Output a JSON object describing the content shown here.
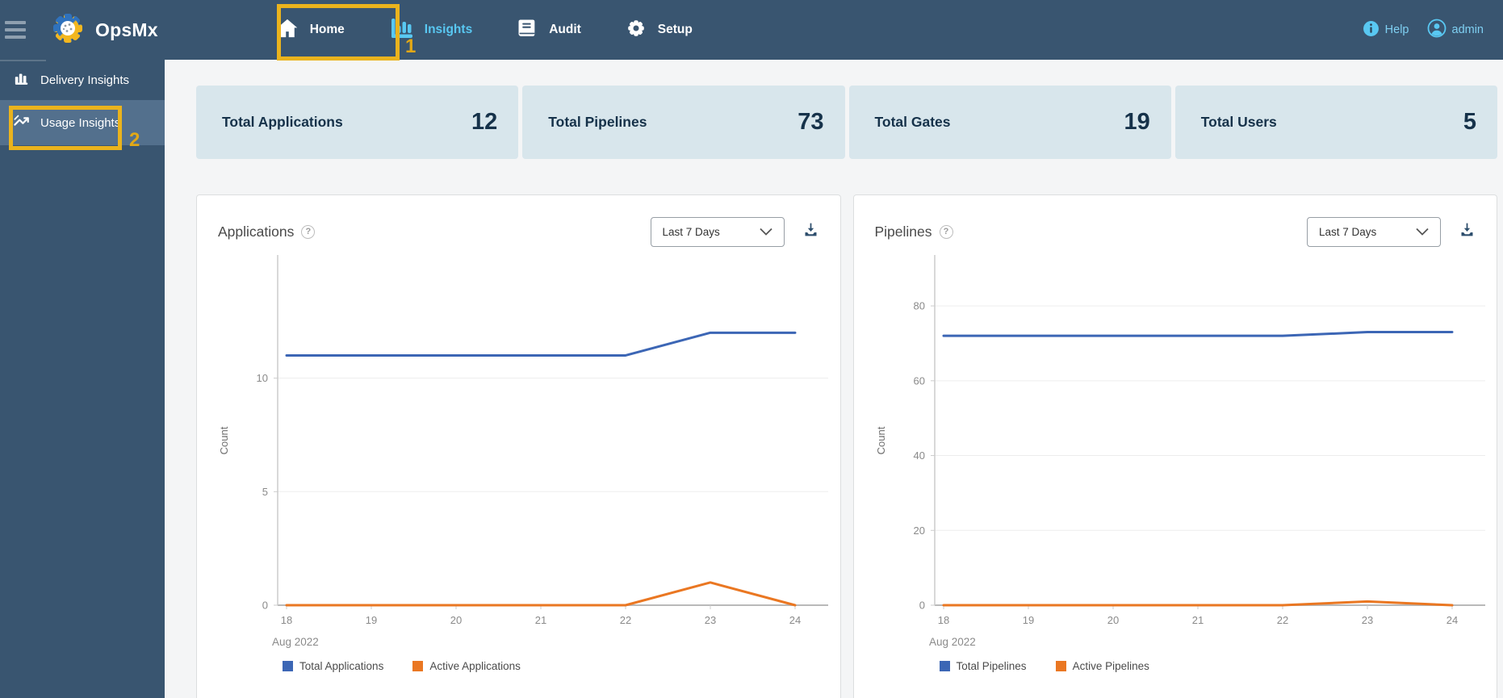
{
  "navbar": {
    "brand": "OpsMx",
    "items": [
      {
        "label": "Home"
      },
      {
        "label": "Insights"
      },
      {
        "label": "Audit"
      },
      {
        "label": "Setup"
      }
    ],
    "help_label": "Help",
    "user_label": "admin"
  },
  "annotations": {
    "step1": "1",
    "step2": "2"
  },
  "sidebar": {
    "items": [
      {
        "label": "Delivery Insights"
      },
      {
        "label": "Usage Insights"
      }
    ]
  },
  "stats": [
    {
      "label": "Total Applications",
      "value": "12"
    },
    {
      "label": "Total Pipelines",
      "value": "73"
    },
    {
      "label": "Total Gates",
      "value": "19"
    },
    {
      "label": "Total Users",
      "value": "5"
    }
  ],
  "panels": [
    {
      "title": "Applications",
      "range_label": "Last 7 Days"
    },
    {
      "title": "Pipelines",
      "range_label": "Last 7 Days"
    }
  ],
  "chart_data": [
    {
      "type": "line",
      "x": [
        18,
        19,
        20,
        21,
        22,
        23,
        24
      ],
      "x_axis_label": "Aug 2022",
      "ylabel": "Count",
      "ylim": [
        0,
        14.5
      ],
      "yticks": [
        0,
        5,
        10
      ],
      "grid": true,
      "legend_position": "bottom-left",
      "series": [
        {
          "name": "Total Applications",
          "color": "#3c66b5",
          "values": [
            11,
            11,
            11,
            11,
            11,
            12,
            12
          ]
        },
        {
          "name": "Active Applications",
          "color": "#ea7722",
          "values": [
            0,
            0,
            0,
            0,
            0,
            1,
            0
          ]
        }
      ]
    },
    {
      "type": "line",
      "x": [
        18,
        19,
        20,
        21,
        22,
        23,
        24
      ],
      "x_axis_label": "Aug 2022",
      "ylabel": "Count",
      "ylim": [
        0,
        88
      ],
      "yticks": [
        0,
        20,
        40,
        60,
        80
      ],
      "grid": true,
      "legend_position": "bottom-left",
      "series": [
        {
          "name": "Total Pipelines",
          "color": "#3c66b5",
          "values": [
            72,
            72,
            72,
            72,
            72,
            73,
            73
          ]
        },
        {
          "name": "Active Pipelines",
          "color": "#ea7722",
          "values": [
            0,
            0,
            0,
            0,
            0,
            1,
            0
          ]
        }
      ]
    }
  ],
  "colors": {
    "navbar_bg": "#395570",
    "sidebar_selected_bg": "#53708d",
    "accent_blue": "#59c8f2",
    "annotation_yellow": "#eab31d",
    "card_bg": "#d8e6ec",
    "chart_blue": "#3c66b5",
    "chart_orange": "#ea7722"
  }
}
